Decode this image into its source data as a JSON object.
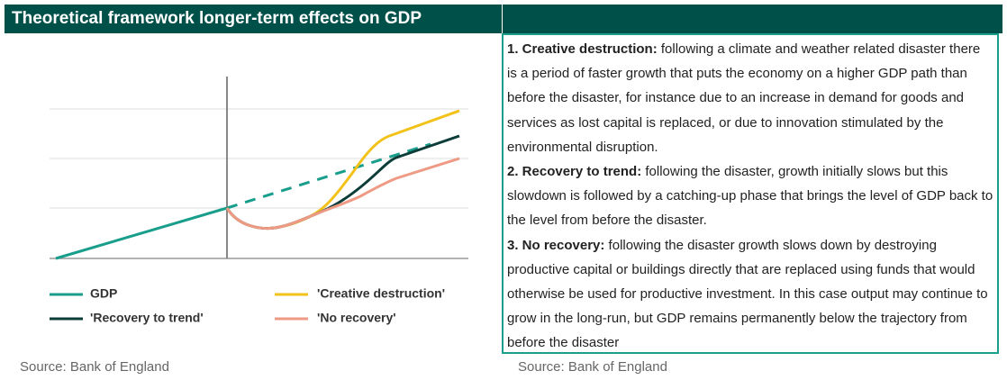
{
  "header": {
    "title": "Theoretical framework longer-term effects on GDP"
  },
  "legend": {
    "items": [
      "GDP",
      "'Creative destruction'",
      "'Recovery to trend'",
      "'No recovery'"
    ]
  },
  "text": {
    "paragraphs": [
      {
        "lead": "1. Creative destruction:",
        "body": " following a climate and weather related disaster there is a period of faster growth that puts the economy on a higher GDP path than before the disaster, for instance due to an increase in demand for goods and services as lost capital is replaced, or due to innovation stimulated by the environmental disruption."
      },
      {
        "lead": "2. Recovery to trend:",
        "body": " following the disaster, growth initially slows but this slowdown is followed by a catching-up phase that brings the level of GDP back to the level from before the disaster."
      },
      {
        "lead": "3. No recovery:",
        "body": " following the disaster growth slows down by destroying productive capital or buildings directly that are replaced using funds that would otherwise be used for productive investment. In this case output may continue to grow in the long-run, but GDP remains permanently below the trajectory from before the disaster"
      }
    ]
  },
  "sources": {
    "left": "Source: Bank of England",
    "right": "Source: Bank of England"
  }
}
